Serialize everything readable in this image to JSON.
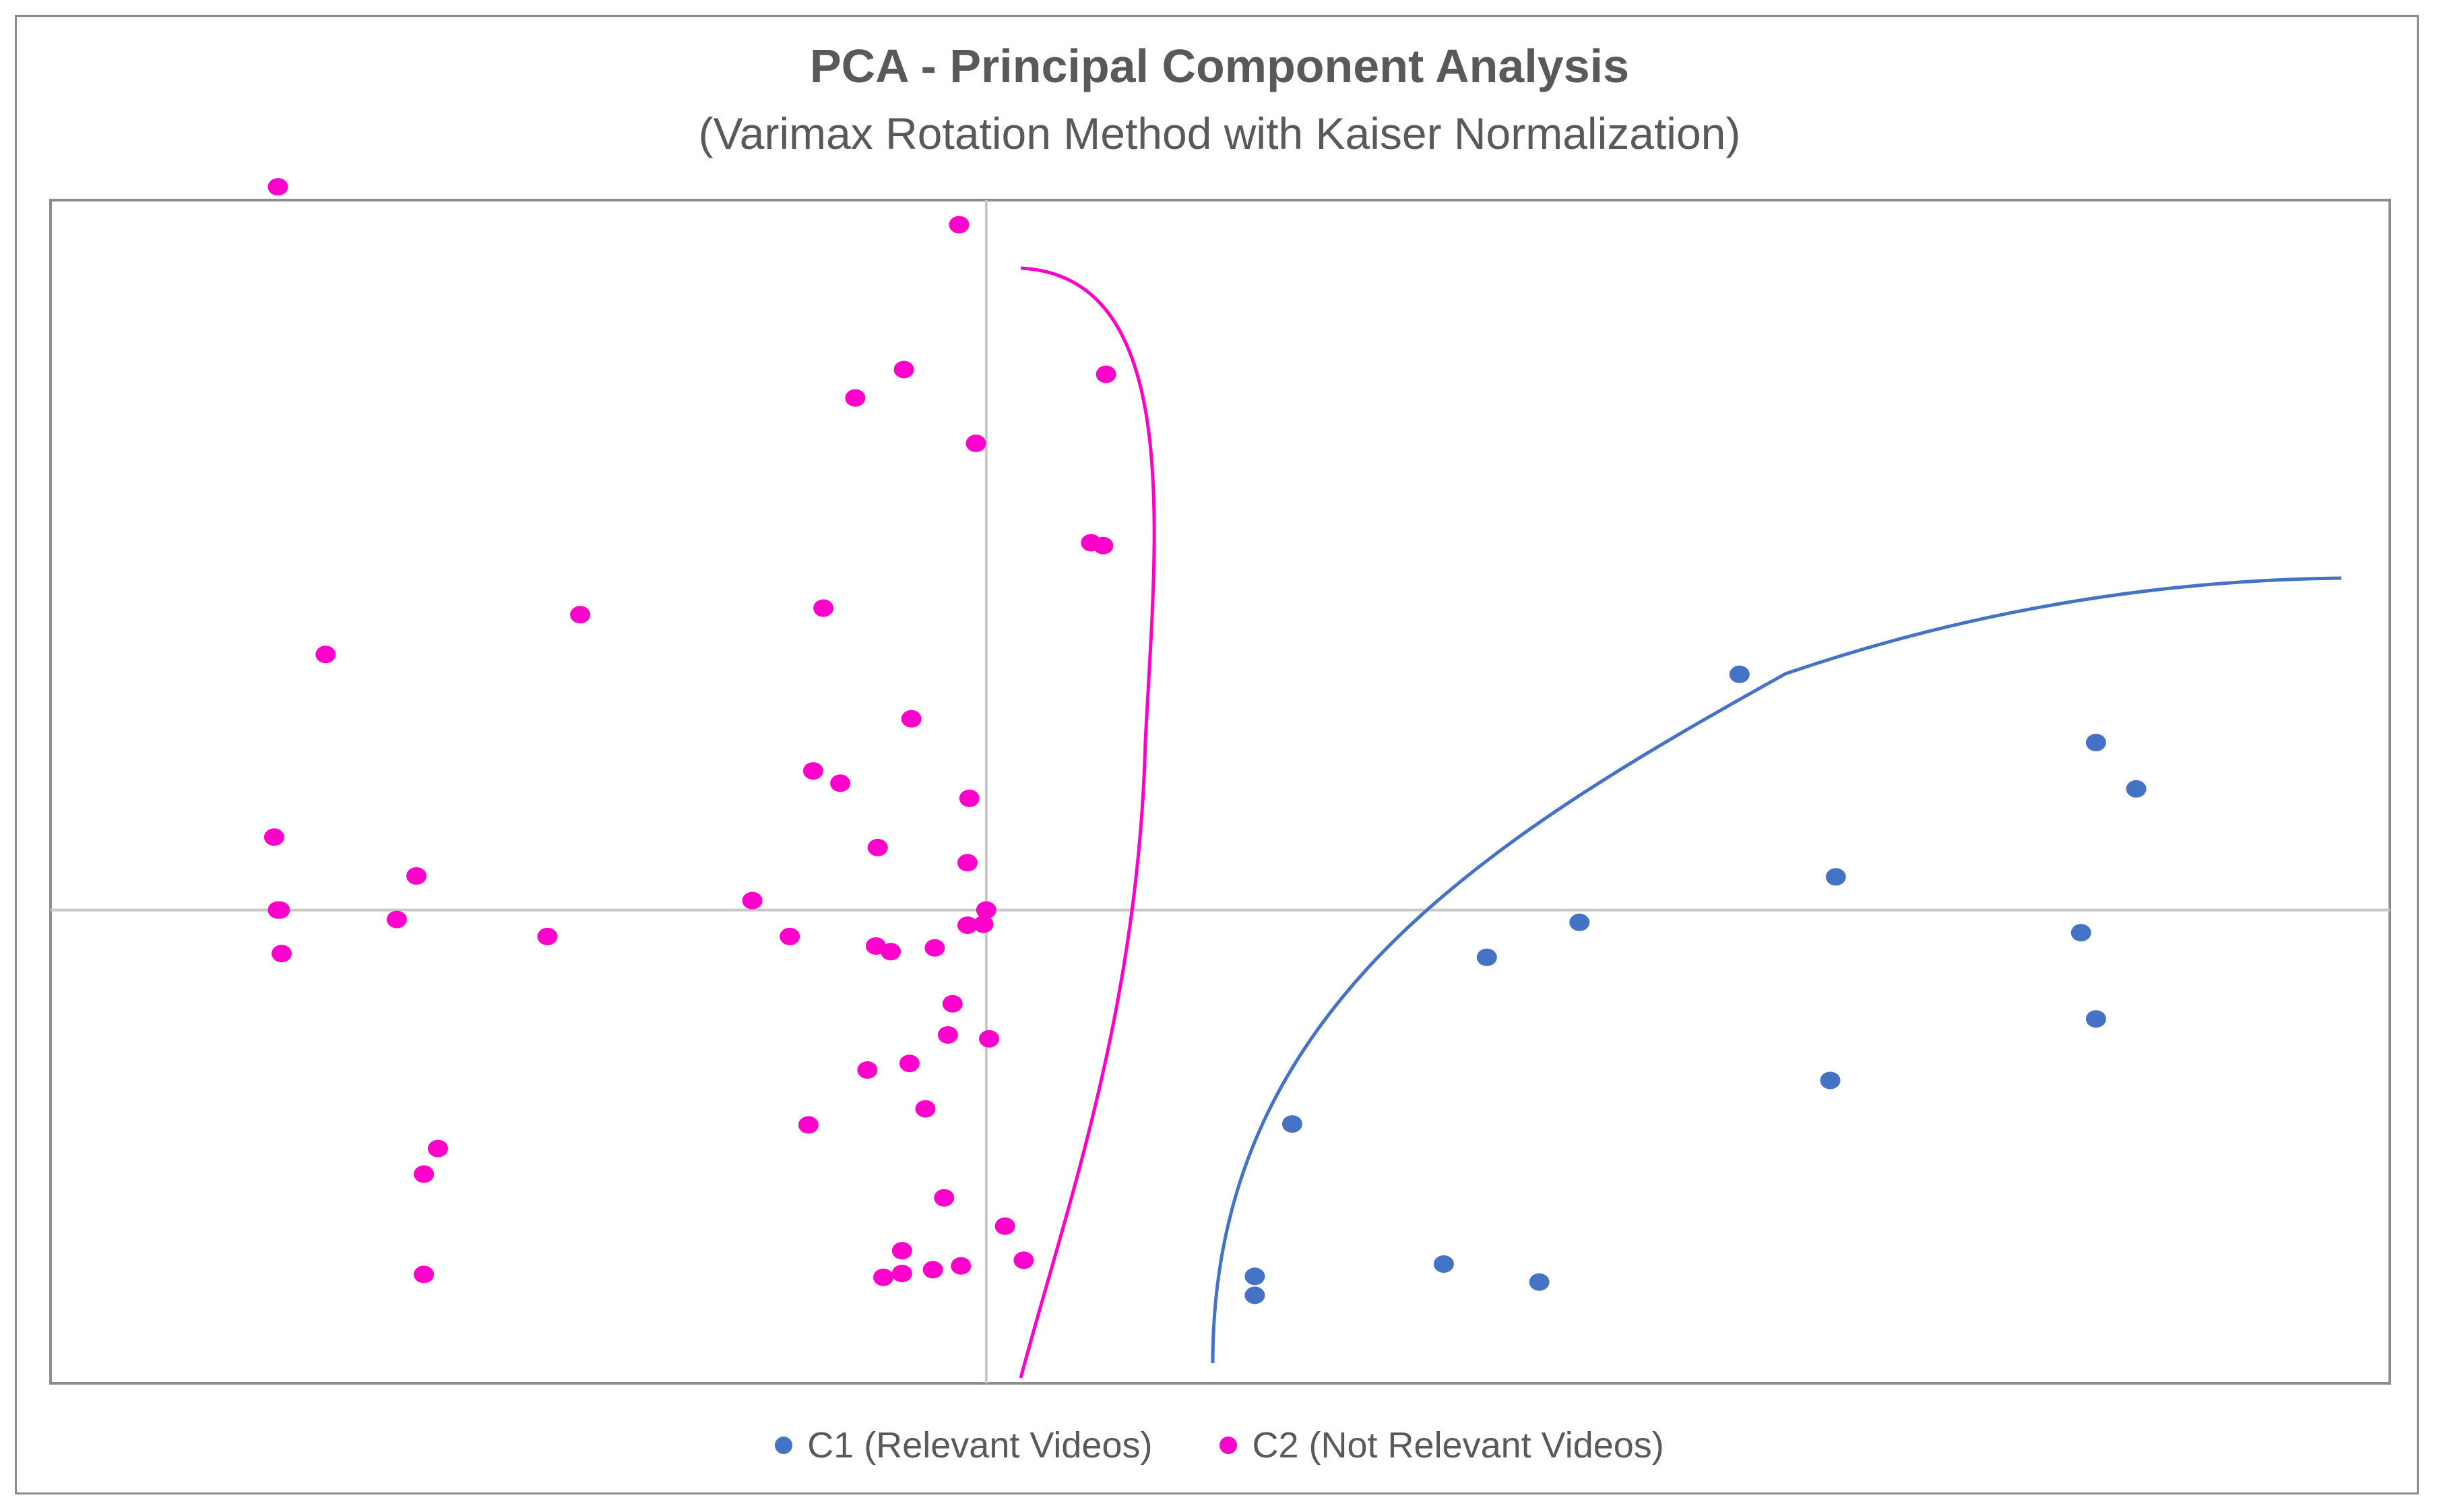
{
  "chart_data": {
    "type": "scatter",
    "title": "PCA - Principal Component Analysis",
    "subtitle": "(Varimax Rotation Method with Kaiser Normalization)",
    "xlabel": "",
    "ylabel": "",
    "xlim": [
      -1.0,
      1.5
    ],
    "ylim": [
      -0.5,
      0.75
    ],
    "grid": false,
    "legend_position": "bottom",
    "series": [
      {
        "name": "C1 (Relevant Videos)",
        "color": "#4472c4",
        "points": [
          [
            0.327,
            -0.226
          ],
          [
            0.287,
            -0.387
          ],
          [
            0.287,
            -0.407
          ],
          [
            0.489,
            -0.374
          ],
          [
            0.535,
            -0.05
          ],
          [
            0.634,
            -0.013
          ],
          [
            0.591,
            -0.393
          ],
          [
            0.805,
            0.249
          ],
          [
            0.908,
            0.035
          ],
          [
            0.902,
            -0.18
          ],
          [
            1.17,
            -0.024
          ],
          [
            1.186,
            0.177
          ],
          [
            1.229,
            0.128
          ],
          [
            1.186,
            -0.115
          ]
        ]
      },
      {
        "name": "C2 (Not Relevant Videos)",
        "color": "#ff00cc",
        "points": [
          [
            -0.029,
            0.724
          ],
          [
            -0.088,
            0.571
          ],
          [
            -0.14,
            0.541
          ],
          [
            0.128,
            0.566
          ],
          [
            -0.011,
            0.493
          ],
          [
            0.112,
            0.388
          ],
          [
            0.125,
            0.385
          ],
          [
            -0.174,
            0.319
          ],
          [
            -0.08,
            0.202
          ],
          [
            -0.185,
            0.147
          ],
          [
            -0.156,
            0.134
          ],
          [
            -0.018,
            0.118
          ],
          [
            -0.116,
            0.066
          ],
          [
            -0.02,
            0.05
          ],
          [
            -0.757,
            0.764
          ],
          [
            -0.434,
            0.312
          ],
          [
            -0.706,
            0.27
          ],
          [
            -0.761,
            0.077
          ],
          [
            -0.609,
            0.036
          ],
          [
            -0.755,
            0.0
          ],
          [
            -0.753,
            -0.046
          ],
          [
            -0.757,
            -0.0
          ],
          [
            -0.63,
            -0.01
          ],
          [
            -0.469,
            -0.028
          ],
          [
            -0.25,
            0.01
          ],
          [
            -0.21,
            -0.028
          ],
          [
            -0.118,
            -0.038
          ],
          [
            -0.102,
            -0.044
          ],
          [
            -0.055,
            -0.04
          ],
          [
            -0.02,
            -0.016
          ],
          [
            -0.003,
            -0.015
          ],
          [
            -0.036,
            -0.099
          ],
          [
            -0.041,
            -0.132
          ],
          [
            0.003,
            -0.136
          ],
          [
            -0.082,
            -0.162
          ],
          [
            -0.127,
            -0.169
          ],
          [
            -0.065,
            -0.21
          ],
          [
            -0.19,
            -0.227
          ],
          [
            -0.586,
            -0.252
          ],
          [
            -0.601,
            -0.279
          ],
          [
            -0.045,
            -0.304
          ],
          [
            -0.09,
            -0.36
          ],
          [
            -0.027,
            -0.376
          ],
          [
            -0.057,
            -0.38
          ],
          [
            -0.09,
            -0.384
          ],
          [
            -0.11,
            -0.388
          ],
          [
            -0.601,
            -0.385
          ],
          [
            0.02,
            -0.334
          ],
          [
            0.04,
            -0.37
          ],
          [
            0.0,
            0.0
          ]
        ]
      }
    ],
    "annotations": [
      {
        "type": "curve",
        "color": "#ff00cc",
        "description": "boundary enclosing C2 cluster"
      },
      {
        "type": "curve",
        "color": "#4472c4",
        "description": "boundary enclosing C1 cluster"
      }
    ]
  }
}
